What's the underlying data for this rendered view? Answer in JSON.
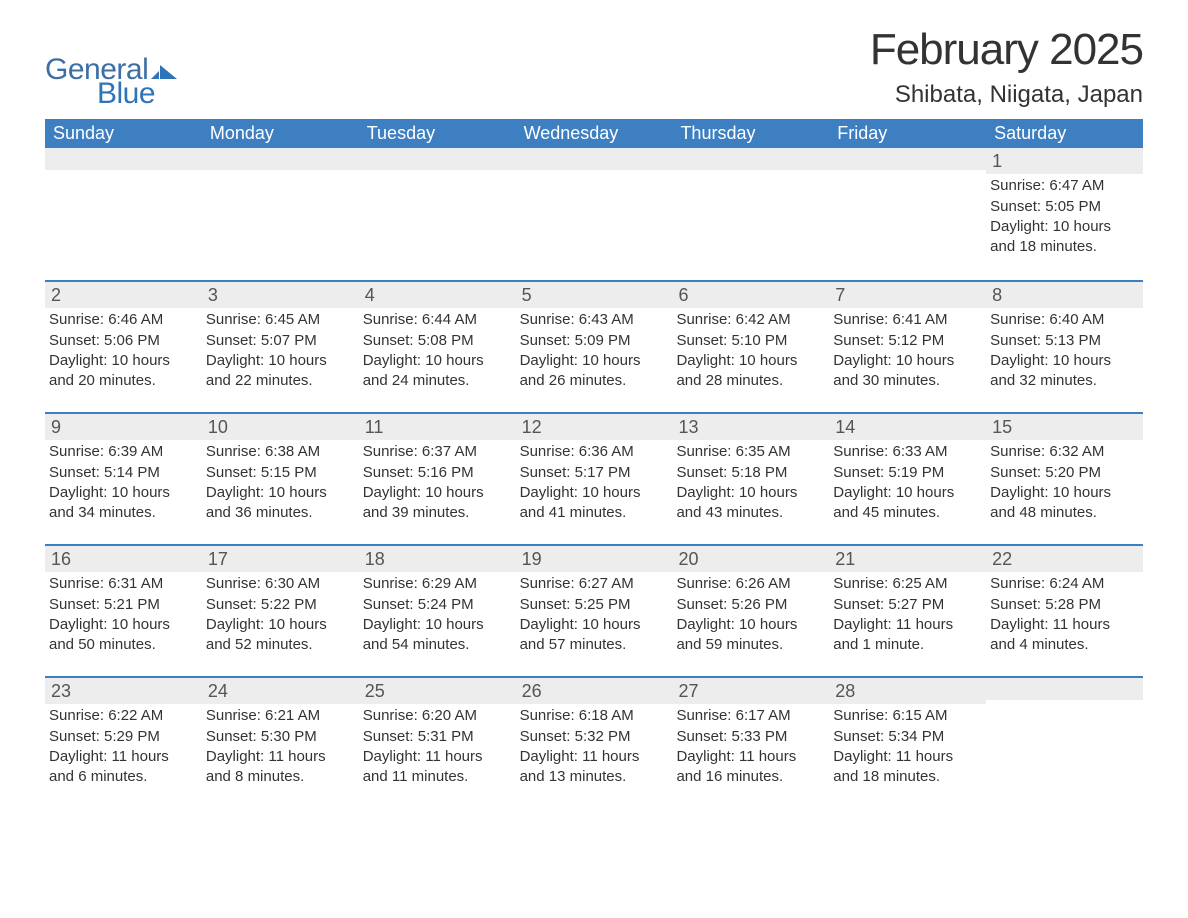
{
  "brand": {
    "word1": "General",
    "word2": "Blue",
    "word1_color": "#3d6fa5",
    "word2_color": "#2f73b9",
    "mark_color": "#2f73b9"
  },
  "title": "February 2025",
  "location": "Shibata, Niigata, Japan",
  "colors": {
    "header_bg": "#3d7fc1",
    "header_text": "#ffffff",
    "band_bg": "#ededed",
    "rule": "#3d7fc1",
    "text": "#333333",
    "background": "#ffffff"
  },
  "typography": {
    "title_fontsize": 44,
    "location_fontsize": 24,
    "weekday_fontsize": 18,
    "daynum_fontsize": 18,
    "body_fontsize": 15
  },
  "weekdays": [
    "Sunday",
    "Monday",
    "Tuesday",
    "Wednesday",
    "Thursday",
    "Friday",
    "Saturday"
  ],
  "weeks": [
    [
      {
        "num": "",
        "sunrise": "",
        "sunset": "",
        "daylight": ""
      },
      {
        "num": "",
        "sunrise": "",
        "sunset": "",
        "daylight": ""
      },
      {
        "num": "",
        "sunrise": "",
        "sunset": "",
        "daylight": ""
      },
      {
        "num": "",
        "sunrise": "",
        "sunset": "",
        "daylight": ""
      },
      {
        "num": "",
        "sunrise": "",
        "sunset": "",
        "daylight": ""
      },
      {
        "num": "",
        "sunrise": "",
        "sunset": "",
        "daylight": ""
      },
      {
        "num": "1",
        "sunrise": "Sunrise: 6:47 AM",
        "sunset": "Sunset: 5:05 PM",
        "daylight": "Daylight: 10 hours and 18 minutes."
      }
    ],
    [
      {
        "num": "2",
        "sunrise": "Sunrise: 6:46 AM",
        "sunset": "Sunset: 5:06 PM",
        "daylight": "Daylight: 10 hours and 20 minutes."
      },
      {
        "num": "3",
        "sunrise": "Sunrise: 6:45 AM",
        "sunset": "Sunset: 5:07 PM",
        "daylight": "Daylight: 10 hours and 22 minutes."
      },
      {
        "num": "4",
        "sunrise": "Sunrise: 6:44 AM",
        "sunset": "Sunset: 5:08 PM",
        "daylight": "Daylight: 10 hours and 24 minutes."
      },
      {
        "num": "5",
        "sunrise": "Sunrise: 6:43 AM",
        "sunset": "Sunset: 5:09 PM",
        "daylight": "Daylight: 10 hours and 26 minutes."
      },
      {
        "num": "6",
        "sunrise": "Sunrise: 6:42 AM",
        "sunset": "Sunset: 5:10 PM",
        "daylight": "Daylight: 10 hours and 28 minutes."
      },
      {
        "num": "7",
        "sunrise": "Sunrise: 6:41 AM",
        "sunset": "Sunset: 5:12 PM",
        "daylight": "Daylight: 10 hours and 30 minutes."
      },
      {
        "num": "8",
        "sunrise": "Sunrise: 6:40 AM",
        "sunset": "Sunset: 5:13 PM",
        "daylight": "Daylight: 10 hours and 32 minutes."
      }
    ],
    [
      {
        "num": "9",
        "sunrise": "Sunrise: 6:39 AM",
        "sunset": "Sunset: 5:14 PM",
        "daylight": "Daylight: 10 hours and 34 minutes."
      },
      {
        "num": "10",
        "sunrise": "Sunrise: 6:38 AM",
        "sunset": "Sunset: 5:15 PM",
        "daylight": "Daylight: 10 hours and 36 minutes."
      },
      {
        "num": "11",
        "sunrise": "Sunrise: 6:37 AM",
        "sunset": "Sunset: 5:16 PM",
        "daylight": "Daylight: 10 hours and 39 minutes."
      },
      {
        "num": "12",
        "sunrise": "Sunrise: 6:36 AM",
        "sunset": "Sunset: 5:17 PM",
        "daylight": "Daylight: 10 hours and 41 minutes."
      },
      {
        "num": "13",
        "sunrise": "Sunrise: 6:35 AM",
        "sunset": "Sunset: 5:18 PM",
        "daylight": "Daylight: 10 hours and 43 minutes."
      },
      {
        "num": "14",
        "sunrise": "Sunrise: 6:33 AM",
        "sunset": "Sunset: 5:19 PM",
        "daylight": "Daylight: 10 hours and 45 minutes."
      },
      {
        "num": "15",
        "sunrise": "Sunrise: 6:32 AM",
        "sunset": "Sunset: 5:20 PM",
        "daylight": "Daylight: 10 hours and 48 minutes."
      }
    ],
    [
      {
        "num": "16",
        "sunrise": "Sunrise: 6:31 AM",
        "sunset": "Sunset: 5:21 PM",
        "daylight": "Daylight: 10 hours and 50 minutes."
      },
      {
        "num": "17",
        "sunrise": "Sunrise: 6:30 AM",
        "sunset": "Sunset: 5:22 PM",
        "daylight": "Daylight: 10 hours and 52 minutes."
      },
      {
        "num": "18",
        "sunrise": "Sunrise: 6:29 AM",
        "sunset": "Sunset: 5:24 PM",
        "daylight": "Daylight: 10 hours and 54 minutes."
      },
      {
        "num": "19",
        "sunrise": "Sunrise: 6:27 AM",
        "sunset": "Sunset: 5:25 PM",
        "daylight": "Daylight: 10 hours and 57 minutes."
      },
      {
        "num": "20",
        "sunrise": "Sunrise: 6:26 AM",
        "sunset": "Sunset: 5:26 PM",
        "daylight": "Daylight: 10 hours and 59 minutes."
      },
      {
        "num": "21",
        "sunrise": "Sunrise: 6:25 AM",
        "sunset": "Sunset: 5:27 PM",
        "daylight": "Daylight: 11 hours and 1 minute."
      },
      {
        "num": "22",
        "sunrise": "Sunrise: 6:24 AM",
        "sunset": "Sunset: 5:28 PM",
        "daylight": "Daylight: 11 hours and 4 minutes."
      }
    ],
    [
      {
        "num": "23",
        "sunrise": "Sunrise: 6:22 AM",
        "sunset": "Sunset: 5:29 PM",
        "daylight": "Daylight: 11 hours and 6 minutes."
      },
      {
        "num": "24",
        "sunrise": "Sunrise: 6:21 AM",
        "sunset": "Sunset: 5:30 PM",
        "daylight": "Daylight: 11 hours and 8 minutes."
      },
      {
        "num": "25",
        "sunrise": "Sunrise: 6:20 AM",
        "sunset": "Sunset: 5:31 PM",
        "daylight": "Daylight: 11 hours and 11 minutes."
      },
      {
        "num": "26",
        "sunrise": "Sunrise: 6:18 AM",
        "sunset": "Sunset: 5:32 PM",
        "daylight": "Daylight: 11 hours and 13 minutes."
      },
      {
        "num": "27",
        "sunrise": "Sunrise: 6:17 AM",
        "sunset": "Sunset: 5:33 PM",
        "daylight": "Daylight: 11 hours and 16 minutes."
      },
      {
        "num": "28",
        "sunrise": "Sunrise: 6:15 AM",
        "sunset": "Sunset: 5:34 PM",
        "daylight": "Daylight: 11 hours and 18 minutes."
      },
      {
        "num": "",
        "sunrise": "",
        "sunset": "",
        "daylight": ""
      }
    ]
  ]
}
